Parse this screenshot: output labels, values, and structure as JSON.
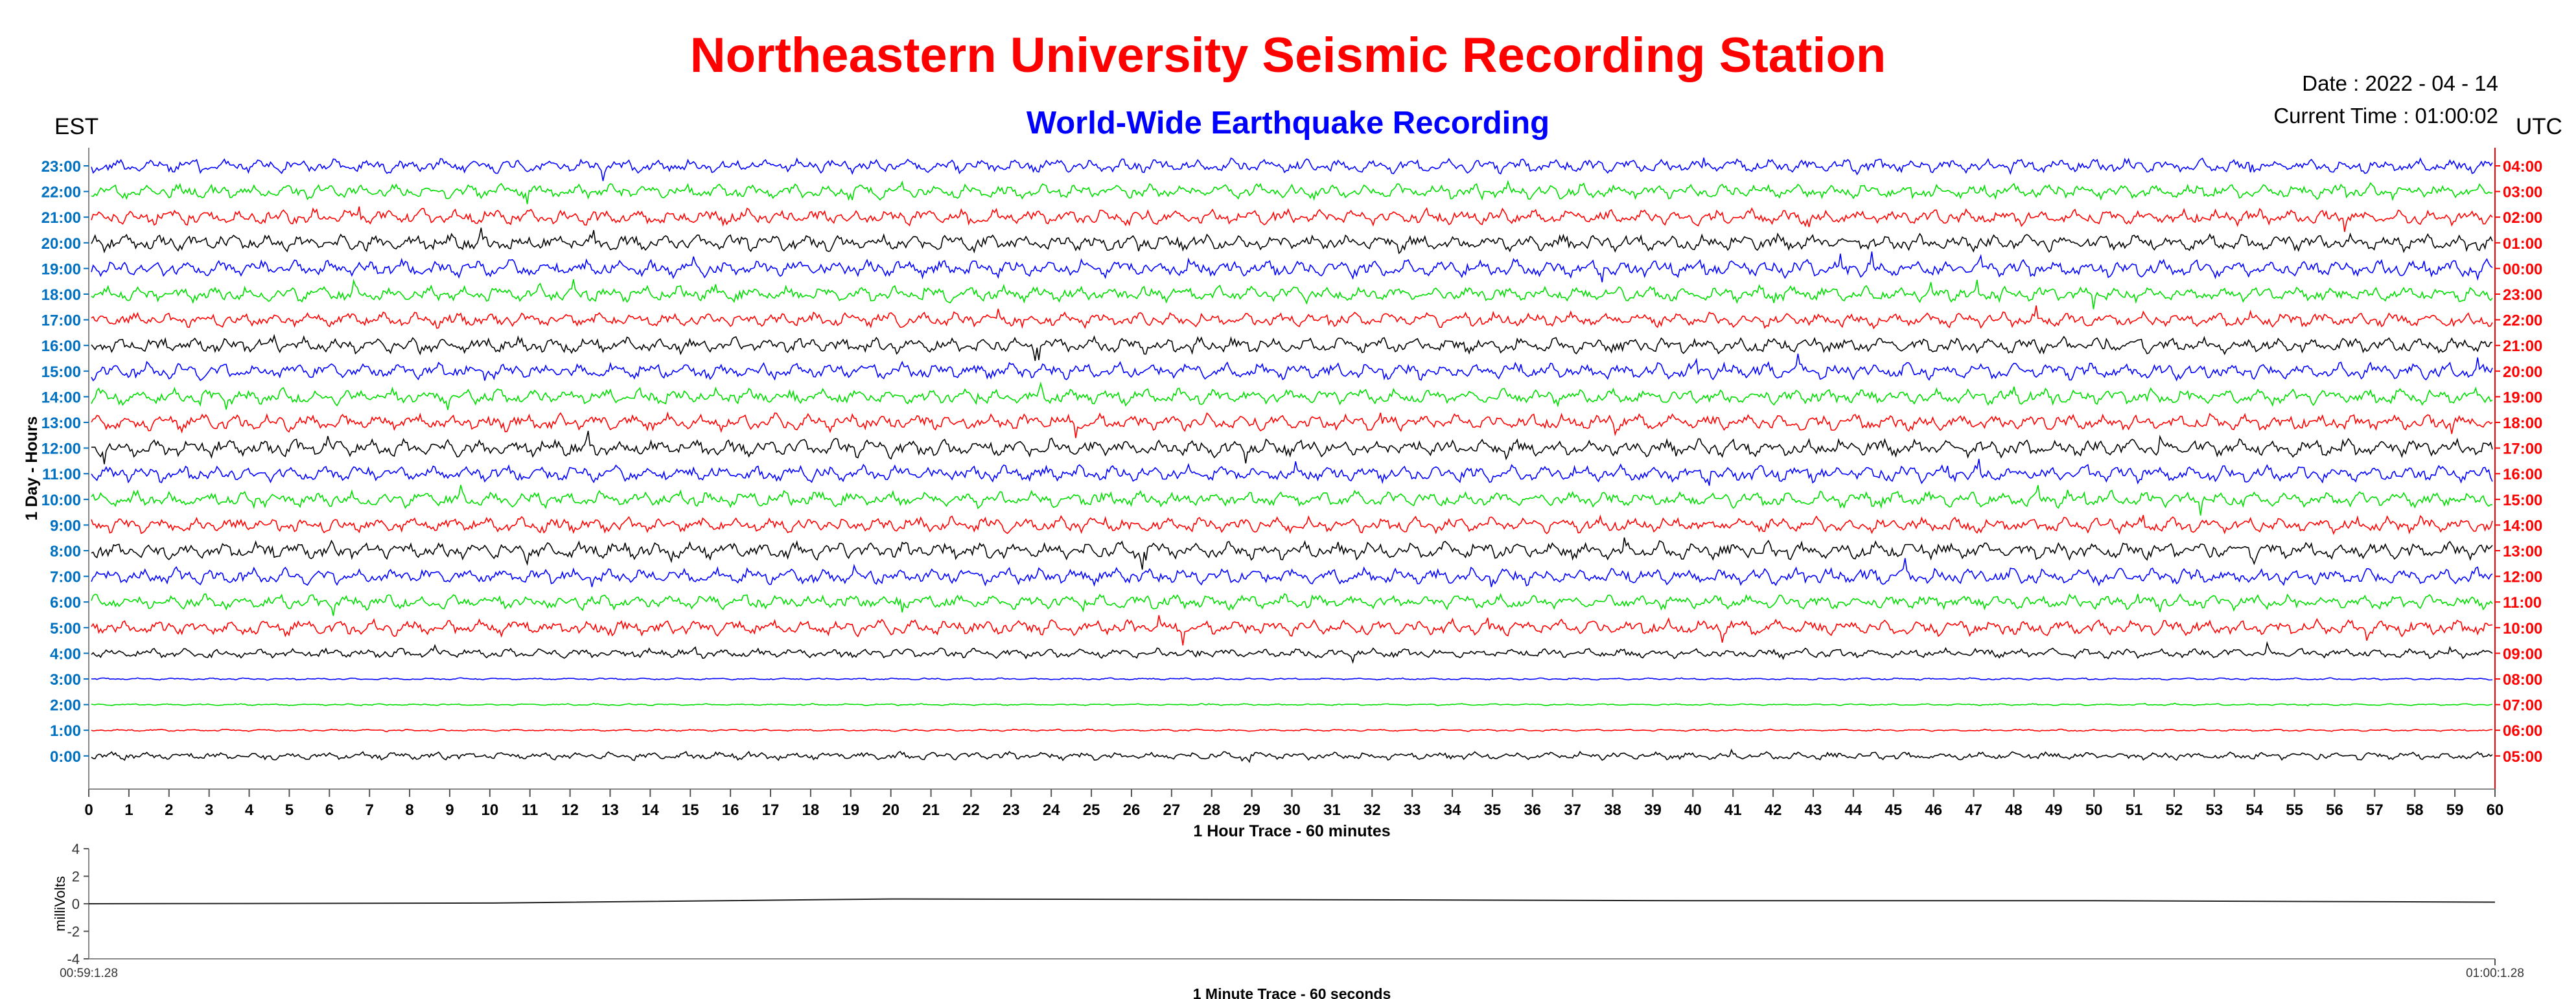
{
  "header": {
    "title": "Northeastern University Seismic Recording Station",
    "subtitle": "World-Wide Earthquake Recording",
    "date": "Date : 2022 - 04 - 14",
    "current_time": "Current Time : 01:00:02",
    "left_zone": "EST",
    "right_zone": "UTC"
  },
  "colors": {
    "title": "#ff0000",
    "subtitle": "#0000ff",
    "left_ticks": "#0070c0",
    "right_ticks": "#ff0000",
    "trace_cycle": [
      "#000000",
      "#ff0000",
      "#00dd00",
      "#0000ff"
    ]
  },
  "chart_data": [
    {
      "type": "line",
      "name": "helicorder",
      "xlabel": "1 Hour Trace - 60 minutes",
      "ylabel": "1 Day - Hours",
      "xlim": [
        0,
        60
      ],
      "x_ticks": [
        "0",
        "1",
        "2",
        "3",
        "4",
        "5",
        "6",
        "7",
        "8",
        "9",
        "10",
        "11",
        "12",
        "13",
        "14",
        "15",
        "16",
        "17",
        "18",
        "19",
        "20",
        "21",
        "22",
        "23",
        "24",
        "25",
        "26",
        "27",
        "28",
        "29",
        "30",
        "31",
        "32",
        "33",
        "34",
        "35",
        "36",
        "37",
        "38",
        "39",
        "40",
        "41",
        "42",
        "43",
        "44",
        "45",
        "46",
        "47",
        "48",
        "49",
        "50",
        "51",
        "52",
        "53",
        "54",
        "55",
        "56",
        "57",
        "58",
        "59",
        "60"
      ],
      "left_ticks": [
        "23:00",
        "22:00",
        "21:00",
        "20:00",
        "19:00",
        "18:00",
        "17:00",
        "16:00",
        "15:00",
        "14:00",
        "13:00",
        "12:00",
        "11:00",
        "10:00",
        "9:00",
        "8:00",
        "7:00",
        "6:00",
        "5:00",
        "4:00",
        "3:00",
        "2:00",
        "1:00",
        "0:00"
      ],
      "right_ticks": [
        "04:00",
        "03:00",
        "02:00",
        "01:00",
        "00:00",
        "23:00",
        "22:00",
        "21:00",
        "20:00",
        "19:00",
        "18:00",
        "17:00",
        "16:00",
        "15:00",
        "14:00",
        "13:00",
        "12:00",
        "11:00",
        "10:00",
        "09:00",
        "08:00",
        "07:00",
        "06:00",
        "05:00"
      ],
      "traces_top_to_bottom": [
        {
          "hour": "23:00",
          "amplitude": 0.8
        },
        {
          "hour": "22:00",
          "amplitude": 0.85
        },
        {
          "hour": "21:00",
          "amplitude": 0.9
        },
        {
          "hour": "20:00",
          "amplitude": 0.95
        },
        {
          "hour": "19:00",
          "amplitude": 1.0
        },
        {
          "hour": "18:00",
          "amplitude": 0.9
        },
        {
          "hour": "17:00",
          "amplitude": 0.85
        },
        {
          "hour": "16:00",
          "amplitude": 0.9
        },
        {
          "hour": "15:00",
          "amplitude": 0.95
        },
        {
          "hour": "14:00",
          "amplitude": 0.9
        },
        {
          "hour": "13:00",
          "amplitude": 0.95
        },
        {
          "hour": "12:00",
          "amplitude": 1.0
        },
        {
          "hour": "11:00",
          "amplitude": 0.95
        },
        {
          "hour": "10:00",
          "amplitude": 0.9
        },
        {
          "hour": "9:00",
          "amplitude": 0.9
        },
        {
          "hour": "8:00",
          "amplitude": 1.0
        },
        {
          "hour": "7:00",
          "amplitude": 0.95
        },
        {
          "hour": "6:00",
          "amplitude": 0.85
        },
        {
          "hour": "5:00",
          "amplitude": 0.9
        },
        {
          "hour": "4:00",
          "amplitude": 0.55
        },
        {
          "hour": "3:00",
          "amplitude": 0.12
        },
        {
          "hour": "2:00",
          "amplitude": 0.1
        },
        {
          "hour": "1:00",
          "amplitude": 0.12
        },
        {
          "hour": "0:00",
          "amplitude": 0.45
        }
      ]
    },
    {
      "type": "line",
      "name": "minute-trace",
      "xlabel": "1 Minute Trace  - 60 seconds",
      "ylabel": "milliVolts",
      "ylim": [
        -4,
        4
      ],
      "y_ticks": [
        "4",
        "2",
        "0",
        "-2",
        "-4"
      ],
      "x_start_label": "00:59:1.28",
      "x_end_label": "01:00:1.28",
      "x_seconds": [
        0,
        10,
        20,
        30,
        40,
        50,
        60
      ],
      "y_mv": [
        0.0,
        0.05,
        0.35,
        0.3,
        0.22,
        0.22,
        0.12
      ]
    }
  ]
}
